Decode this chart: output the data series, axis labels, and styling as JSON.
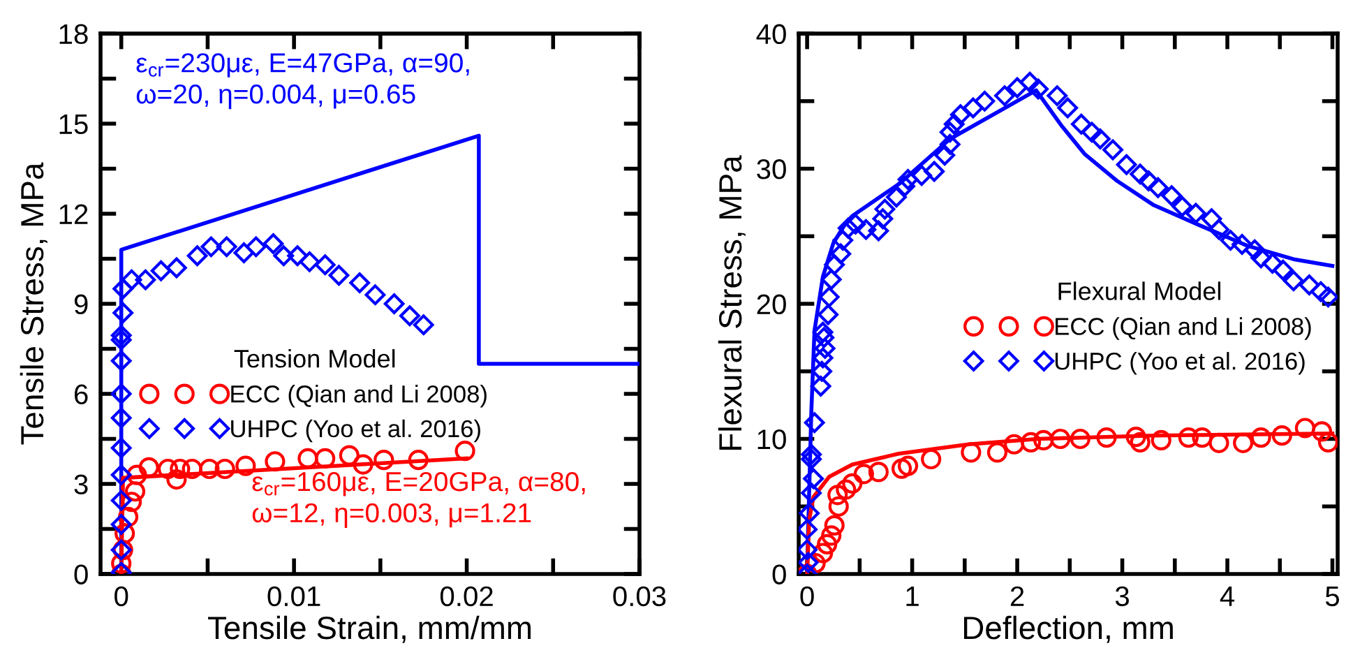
{
  "chart_data": [
    {
      "type": "scatter",
      "xlabel": "Tensile Strain, mm/mm",
      "ylabel": "Tensile Stress, MPa",
      "legend_title": "Tension Model",
      "legend": "left",
      "grid": false,
      "xlim": [
        -0.0012,
        0.03
      ],
      "xticks": [
        0,
        {
          "value": 0.005,
          "label": null
        },
        0.01,
        {
          "value": 0.015,
          "label": null
        },
        0.02,
        {
          "value": 0.025,
          "label": null
        },
        0.03
      ],
      "ylim": [
        0,
        18
      ],
      "yticks": [
        0,
        {
          "value": 1.5,
          "label": null
        },
        3,
        {
          "value": 4.5,
          "label": null
        },
        6,
        {
          "value": 7.5,
          "label": null
        },
        9,
        {
          "value": 10.5,
          "label": null
        },
        12,
        {
          "value": 13.5,
          "label": null
        },
        15,
        {
          "value": 16.5,
          "label": null
        },
        18
      ],
      "annotations": [
        "ε$_{cr}$=230με, E=47GPa, α=90,\nω=20, η=0.004, μ=0.65",
        "ε$_{cr}$=160με, E=20GPa, α=80,\nω=12, η=0.003, μ=1.21"
      ],
      "series": [
        {
          "type": "line",
          "color": "#0000ff",
          "marker": "none",
          "x": [
            0,
            0,
            0.0207,
            0.0207,
            0.03
          ],
          "values": [
            0,
            10.8,
            14.6,
            7.0,
            7.0
          ]
        },
        {
          "type": "line",
          "color": "#ff0000",
          "marker": "none",
          "x": [
            0,
            0.0001,
            0.02
          ],
          "values": [
            0,
            3.2,
            3.85
          ]
        },
        {
          "name": "ECC (Qian and Li 2008)",
          "color": "#ff0000",
          "marker": "circle",
          "x": [
            0,
            0,
            0.0001,
            0.0002,
            0.0004,
            0.0006,
            0.0008,
            0.0009,
            0.0016,
            0.0027,
            0.0032,
            0.0034,
            0.0041,
            0.0051,
            0.006,
            0.0072,
            0.0089,
            0.0108,
            0.0118,
            0.0132,
            0.014,
            0.0152,
            0.0172,
            0.0199
          ],
          "values": [
            0,
            0.35,
            0.8,
            1.35,
            1.9,
            2.4,
            2.75,
            3.3,
            3.55,
            3.5,
            3.15,
            3.5,
            3.5,
            3.5,
            3.5,
            3.6,
            3.75,
            3.85,
            3.85,
            3.95,
            3.65,
            3.8,
            3.8,
            4.1
          ]
        },
        {
          "name": "UHPC (Yoo et al. 2016)",
          "color": "#0000ff",
          "marker": "diamond",
          "x": [
            0,
            0,
            0,
            0,
            0,
            0,
            0,
            0,
            0,
            0,
            0,
            0.0001,
            0.0001,
            0.0006,
            0.0014,
            0.0023,
            0.0032,
            0.0044,
            0.0052,
            0.0061,
            0.0071,
            0.0078,
            0.0088,
            0.0094,
            0.0102,
            0.0109,
            0.0118,
            0.0126,
            0.0138,
            0.0147,
            0.0158,
            0.0167,
            0.0175
          ],
          "values": [
            0.05,
            0.8,
            1.65,
            2.45,
            3.3,
            4.2,
            5.2,
            6.0,
            7.1,
            7.8,
            7.95,
            8.7,
            9.5,
            9.8,
            9.8,
            10.1,
            10.2,
            10.6,
            10.9,
            10.9,
            10.7,
            10.9,
            11.0,
            10.6,
            10.6,
            10.4,
            10.3,
            9.95,
            9.7,
            9.3,
            9.0,
            8.6,
            8.3
          ]
        }
      ]
    },
    {
      "type": "scatter",
      "xlabel": "Deflection, mm",
      "ylabel": "Flexural Stress, MPa",
      "legend_title": "Flexural Model",
      "legend": "right",
      "grid": false,
      "xlim": [
        -0.08,
        5.05
      ],
      "xticks": [
        0,
        {
          "value": 0.5,
          "label": null
        },
        1,
        {
          "value": 1.5,
          "label": null
        },
        2,
        {
          "value": 2.5,
          "label": null
        },
        3,
        {
          "value": 3.5,
          "label": null
        },
        4,
        {
          "value": 4.5,
          "label": null
        },
        5
      ],
      "ylim": [
        0,
        40
      ],
      "yticks": [
        0,
        {
          "value": 5,
          "label": null
        },
        10,
        {
          "value": 15,
          "label": null
        },
        20,
        {
          "value": 25,
          "label": null
        },
        30,
        {
          "value": 35,
          "label": null
        },
        40
      ],
      "series": [
        {
          "type": "line",
          "color": "#0000ff",
          "marker": "none",
          "x": [
            0,
            0.01,
            0.04,
            0.07,
            0.15,
            0.25,
            0.37,
            0.43,
            0.88,
            1.36,
            2.18,
            2.42,
            2.64,
            2.95,
            3.3,
            3.74,
            4.19,
            4.63,
            5.0
          ],
          "values": [
            0,
            3.3,
            12,
            18,
            22,
            24.5,
            26.0,
            26.5,
            28.9,
            32.2,
            35.8,
            33.2,
            31.1,
            29.1,
            27.3,
            25.8,
            24.3,
            23.3,
            22.8
          ]
        },
        {
          "type": "line",
          "color": "#ff0000",
          "marker": "none",
          "x": [
            0,
            0.02,
            0.06,
            0.21,
            0.43,
            0.87,
            1.54,
            2.2,
            3.3,
            5.0
          ],
          "values": [
            0,
            4.0,
            5.7,
            7.2,
            8.1,
            8.9,
            9.6,
            10.0,
            10.25,
            10.4
          ]
        },
        {
          "name": "ECC (Qian and Li 2008)",
          "color": "#ff0000",
          "marker": "circle",
          "x": [
            0,
            0.08,
            0.15,
            0.19,
            0.23,
            0.26,
            0.3,
            0.29,
            0.37,
            0.43,
            0.54,
            0.68,
            0.9,
            0.96,
            1.18,
            1.56,
            1.81,
            1.97,
            2.13,
            2.25,
            2.41,
            2.6,
            2.85,
            3.13,
            3.17,
            3.37,
            3.63,
            3.76,
            3.92,
            4.15,
            4.32,
            4.52,
            4.74,
            4.9,
            4.96
          ],
          "values": [
            0,
            0.8,
            1.55,
            2.2,
            2.85,
            3.6,
            5.0,
            5.85,
            6.25,
            6.7,
            7.4,
            7.55,
            7.8,
            8.0,
            8.5,
            9.0,
            9.0,
            9.6,
            9.75,
            9.9,
            10.0,
            10.0,
            10.1,
            10.15,
            9.75,
            9.9,
            10.1,
            10.1,
            9.7,
            9.7,
            10.1,
            10.25,
            10.8,
            10.55,
            9.75
          ]
        },
        {
          "name": "UHPC (Yoo et al. 2016)",
          "color": "#0000ff",
          "marker": "diamond",
          "x": [
            0,
            0.01,
            0,
            0,
            0.02,
            0.04,
            0.06,
            0.04,
            0.04,
            0.07,
            0.13,
            0.14,
            0.15,
            0.17,
            0.16,
            0.15,
            0.2,
            0.21,
            0.23,
            0.26,
            0.32,
            0.34,
            0.39,
            0.46,
            0.56,
            0.68,
            0.72,
            0.74,
            0.85,
            0.93,
            0.96,
            1.09,
            1.21,
            1.31,
            1.36,
            1.36,
            1.4,
            1.46,
            1.58,
            1.69,
            1.88,
            2.0,
            2.12,
            2.2,
            2.38,
            2.48,
            2.61,
            2.71,
            2.79,
            2.91,
            3.04,
            3.17,
            3.25,
            3.34,
            3.47,
            3.57,
            3.7,
            3.85,
            3.92,
            4.03,
            4.14,
            4.26,
            4.32,
            4.43,
            4.53,
            4.63,
            4.78,
            4.89,
            4.96
          ],
          "values": [
            0,
            0.85,
            1.8,
            3.3,
            4.5,
            6.0,
            7.05,
            8.5,
            8.85,
            11.2,
            13.9,
            15.0,
            16.0,
            16.7,
            17.5,
            17.9,
            19.2,
            20.5,
            21.8,
            22.9,
            23.7,
            24.7,
            25.6,
            25.9,
            25.5,
            25.4,
            26.3,
            27.0,
            27.9,
            28.7,
            29.2,
            29.5,
            29.8,
            31.0,
            31.8,
            32.7,
            33.3,
            34.0,
            34.5,
            35.0,
            35.4,
            36.0,
            36.4,
            35.9,
            35.4,
            34.5,
            33.3,
            32.7,
            32.2,
            31.4,
            30.3,
            29.6,
            29.1,
            28.6,
            28.0,
            27.2,
            26.7,
            26.3,
            25.5,
            24.7,
            24.4,
            24.0,
            23.4,
            23.0,
            22.5,
            21.7,
            21.4,
            20.9,
            20.5
          ]
        }
      ]
    }
  ]
}
